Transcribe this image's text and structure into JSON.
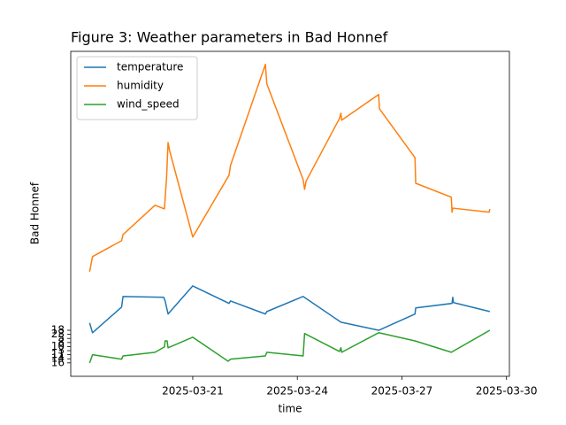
{
  "chart_data": {
    "type": "line",
    "title": "Figure 3: Weather parameters in Bad Honnef",
    "x_label": "time",
    "y_label": "Bad Honnef",
    "xlim": [
      "2025-03-17T12:00",
      "2025-03-30T02:00"
    ],
    "xticks": [
      "2025-03-21",
      "2025-03-24",
      "2025-03-27",
      "2025-03-30"
    ],
    "ylim": [
      -3.3,
      76.5
    ],
    "yticks": [
      {
        "value": 0,
        "label": "16"
      },
      {
        "value": 1,
        "label": "14"
      },
      {
        "value": 2,
        "label": "11"
      },
      {
        "value": 3,
        "label": "3"
      },
      {
        "value": 4,
        "label": "10"
      },
      {
        "value": 5,
        "label": "8"
      },
      {
        "value": 6,
        "label": "5"
      },
      {
        "value": 7,
        "label": "23"
      },
      {
        "value": 8,
        "label": "18"
      }
    ],
    "legend": "upper left",
    "series": [
      {
        "name": "temperature",
        "color": "#1f77b4",
        "x": [
          "2025-03-18T01:00",
          "2025-03-18T03:00",
          "2025-03-18T23:00",
          "2025-03-19T00:00",
          "2025-03-20T04:00",
          "2025-03-20T05:00",
          "2025-03-20T07:00",
          "2025-03-21T00:00",
          "2025-03-22T01:00",
          "2025-03-22T02:00",
          "2025-03-23T02:00",
          "2025-03-23T03:00",
          "2025-03-24T04:00",
          "2025-03-25T06:00",
          "2025-03-26T08:00",
          "2025-03-27T09:00",
          "2025-03-27T09:30",
          "2025-03-28T10:30",
          "2025-03-28T11:00",
          "2025-03-28T11:30",
          "2025-03-29T12:30"
        ],
        "values": [
          9.8,
          7.4,
          13.7,
          16.3,
          16.1,
          15.2,
          12.0,
          18.9,
          14.6,
          15.2,
          12.0,
          12.6,
          16.3,
          10.0,
          8.0,
          12.0,
          13.5,
          14.6,
          16.1,
          14.8,
          12.6
        ]
      },
      {
        "name": "humidity",
        "color": "#ff7f0e",
        "x": [
          "2025-03-18T01:00",
          "2025-03-18T03:00",
          "2025-03-18T23:00",
          "2025-03-19T00:00",
          "2025-03-19T22:00",
          "2025-03-20T04:30",
          "2025-03-20T06:00",
          "2025-03-20T07:00",
          "2025-03-20T08:00",
          "2025-03-21T00:00",
          "2025-03-22T01:00",
          "2025-03-22T02:00",
          "2025-03-23T02:00",
          "2025-03-23T03:00",
          "2025-03-24T04:00",
          "2025-03-24T05:00",
          "2025-03-24T06:00",
          "2025-03-25T05:00",
          "2025-03-25T06:00",
          "2025-03-25T06:30",
          "2025-03-26T08:00",
          "2025-03-26T08:30",
          "2025-03-27T09:00",
          "2025-03-27T09:30",
          "2025-03-28T10:00",
          "2025-03-28T10:30",
          "2025-03-28T11:00",
          "2025-03-29T12:00",
          "2025-03-29T12:30"
        ],
        "values": [
          22.4,
          26.1,
          30.0,
          31.5,
          38.7,
          37.8,
          45.7,
          54.1,
          52.2,
          30.9,
          46.1,
          48.5,
          73.3,
          68.5,
          45.0,
          42.6,
          44.6,
          60.0,
          61.3,
          59.6,
          65.9,
          62.4,
          50.4,
          44.1,
          40.7,
          37.0,
          38.0,
          37.0,
          37.8
        ]
      },
      {
        "name": "wind_speed",
        "color": "#2ca02c",
        "x": [
          "2025-03-18T01:00",
          "2025-03-18T03:00",
          "2025-03-18T23:00",
          "2025-03-19T00:00",
          "2025-03-19T22:00",
          "2025-03-20T04:30",
          "2025-03-20T05:00",
          "2025-03-20T06:20",
          "2025-03-20T07:00",
          "2025-03-21T00:00",
          "2025-03-22T00:20",
          "2025-03-22T02:00",
          "2025-03-23T02:00",
          "2025-03-23T03:00",
          "2025-03-24T04:00",
          "2025-03-24T05:00",
          "2025-03-25T05:00",
          "2025-03-25T06:00",
          "2025-03-25T06:30",
          "2025-03-26T08:00",
          "2025-03-27T09:00",
          "2025-03-28T10:00",
          "2025-03-29T12:30"
        ],
        "values": [
          0,
          2.0,
          0.9,
          1.7,
          2.6,
          3.9,
          5.4,
          5.4,
          3.7,
          6.3,
          0.4,
          0.9,
          1.7,
          2.6,
          1.7,
          7.2,
          2.8,
          3.7,
          2.6,
          7.4,
          5.4,
          2.6,
          8.0
        ]
      }
    ]
  }
}
